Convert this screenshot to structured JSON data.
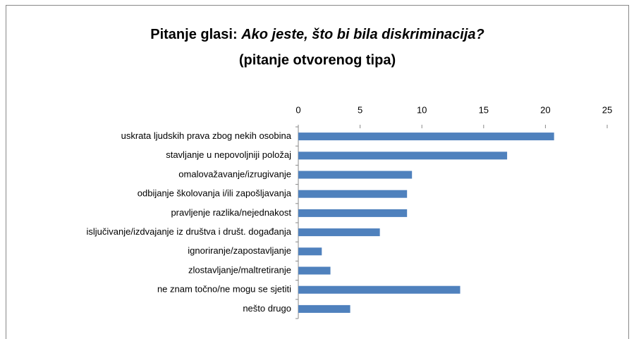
{
  "chart_data": {
    "type": "bar",
    "orientation": "horizontal",
    "title": "Pitanje glasi:",
    "title_question": "Ako jeste, što bi bila diskriminacija?",
    "subtitle": "(pitanje otvorenog tipa)",
    "categories": [
      "uskrata ljudskih prava zbog nekih osobina",
      "stavljanje u nepovoljniji položaj",
      "omalovažavanje/izrugivanje",
      "odbijanje školovanja i/ili zapošljavanja",
      "pravljenje razlika/nejednakost",
      "isljučivanje/izdvajanje iz društva i društ. događanja",
      "ignoriranje/zapostavljanje",
      "zlostavljanje/maltretiranje",
      "ne znam točno/ne mogu se sjetiti",
      "nešto drugo"
    ],
    "values": [
      20.7,
      16.9,
      9.2,
      8.8,
      8.8,
      6.6,
      1.9,
      2.6,
      13.1,
      4.2
    ],
    "color": "#4f81bd",
    "xlim": [
      0,
      25
    ],
    "xticks": [
      0,
      5,
      10,
      15,
      20,
      25
    ],
    "grid": false
  }
}
